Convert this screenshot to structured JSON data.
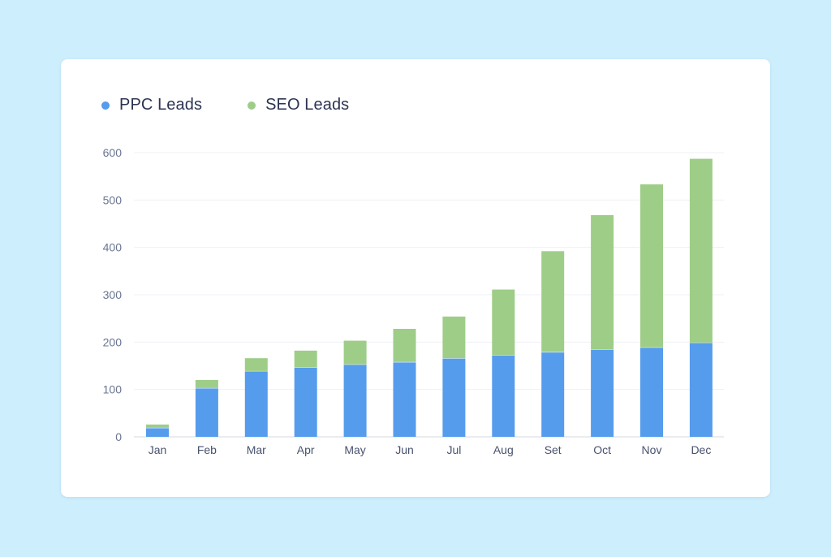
{
  "chart_data": {
    "type": "bar",
    "stacked": true,
    "categories": [
      "Jan",
      "Feb",
      "Mar",
      "Apr",
      "May",
      "Jun",
      "Jul",
      "Aug",
      "Set",
      "Oct",
      "Nov",
      "Dec"
    ],
    "series": [
      {
        "name": "PPC Leads",
        "color": "#559cec",
        "values": [
          19,
          103,
          139,
          147,
          153,
          158,
          166,
          173,
          179,
          185,
          189,
          199
        ]
      },
      {
        "name": "SEO Leads",
        "color": "#9ecd88",
        "values": [
          7,
          17,
          27,
          35,
          50,
          70,
          88,
          138,
          213,
          283,
          344,
          388
        ]
      }
    ],
    "yticks": [
      0,
      100,
      200,
      300,
      400,
      500,
      600
    ],
    "ylim": [
      0,
      600
    ],
    "grid": true,
    "legend_position": "top-left",
    "title": "",
    "xlabel": "",
    "ylabel": ""
  }
}
